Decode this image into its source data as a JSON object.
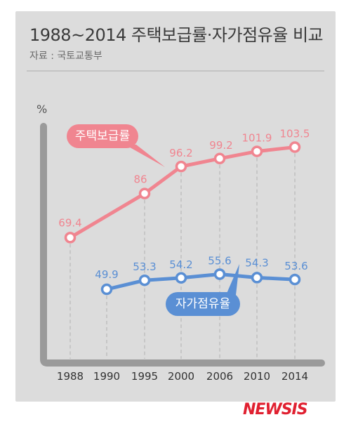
{
  "title": "1988~2014 주택보급률·자가점유율 비교",
  "source": "자료 : 국토교통부",
  "unit": "%",
  "brand_logo": "NEWSIS",
  "colors": {
    "supply": "#f08590",
    "owner": "#5a8fd4",
    "axis": "#9a9a9a",
    "grid": "#b8b8b8"
  },
  "chart_data": {
    "type": "line",
    "categories": [
      "1988",
      "1990",
      "1995",
      "2000",
      "2006",
      "2010",
      "2014"
    ],
    "ylabel": "%",
    "grid": "vertical dashed",
    "series": [
      {
        "name": "주택보급률",
        "values": [
          69.4,
          null,
          86,
          96.2,
          99.2,
          101.9,
          103.5
        ],
        "labels": [
          "69.4",
          "",
          "86",
          "96.2",
          "99.2",
          "101.9",
          "103.5"
        ]
      },
      {
        "name": "자가점유율",
        "values": [
          null,
          49.9,
          53.3,
          54.2,
          55.6,
          54.3,
          53.6
        ],
        "labels": [
          "",
          "49.9",
          "53.3",
          "54.2",
          "55.6",
          "54.3",
          "53.6"
        ]
      }
    ]
  }
}
